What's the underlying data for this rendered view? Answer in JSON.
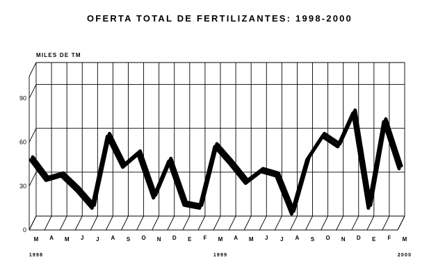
{
  "chart_data": {
    "type": "line",
    "title": "OFERTA TOTAL DE FERTILIZANTES: 1998-2000",
    "ylabel": "MILES DE TM",
    "xlabel": "",
    "ylim": [
      0,
      105
    ],
    "yticks": [
      0,
      30,
      60,
      90
    ],
    "grid": true,
    "legend": "none",
    "style": "3d-ribbon",
    "line_color": "#000000",
    "categories": [
      "M",
      "A",
      "M",
      "J",
      "J",
      "A",
      "S",
      "O",
      "N",
      "D",
      "E",
      "F",
      "M",
      "A",
      "M",
      "J",
      "J",
      "A",
      "S",
      "O",
      "N",
      "D",
      "E",
      "F",
      "M"
    ],
    "year_labels": [
      {
        "label": "1998",
        "index": 0
      },
      {
        "label": "1999",
        "index": 12
      },
      {
        "label": "2000",
        "index": 24
      }
    ],
    "series": [
      {
        "values": [
          48,
          34,
          37,
          27,
          15,
          64,
          43,
          52,
          22,
          47,
          17,
          15,
          57,
          45,
          32,
          40,
          37,
          11,
          48,
          64,
          57,
          80,
          15,
          74,
          42
        ]
      }
    ]
  }
}
